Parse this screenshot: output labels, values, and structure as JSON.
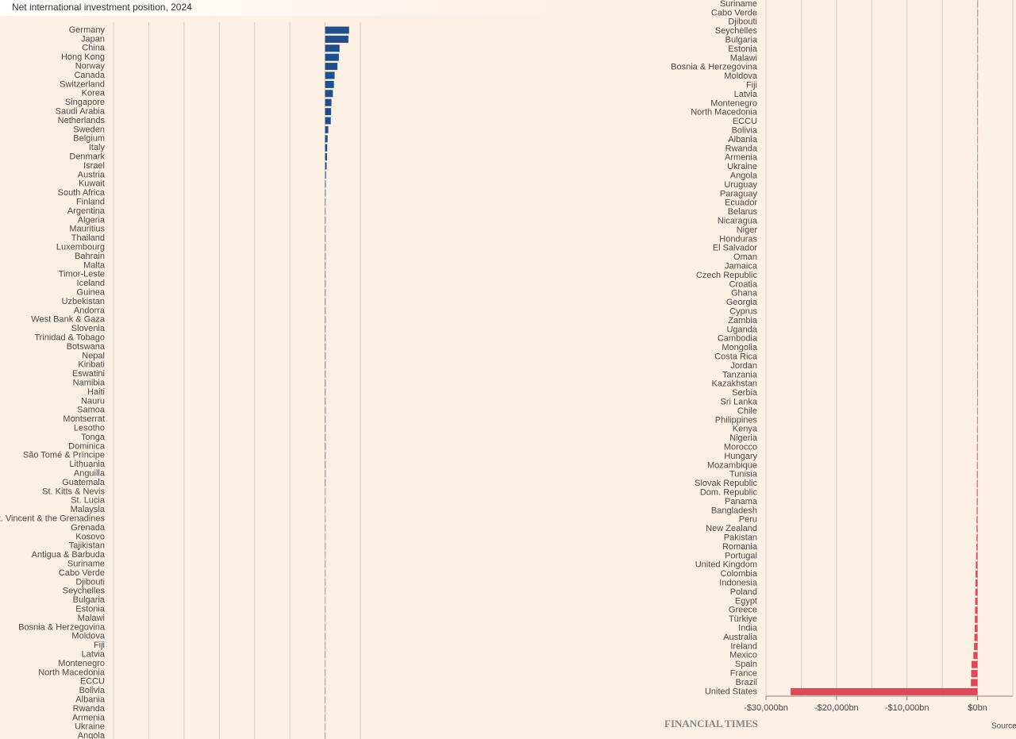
{
  "chart_data": [
    {
      "type": "bar",
      "orientation": "horizontal",
      "title": "Net international investment position, 2024",
      "categories": [
        "Germany",
        "Japan",
        "China",
        "Hong Kong",
        "Norway",
        "Canada",
        "Switzerland",
        "Korea",
        "Singapore",
        "Saudi Arabia",
        "Netherlands",
        "Sweden",
        "Belgium",
        "Italy",
        "Denmark",
        "Israel",
        "Austria",
        "Kuwait",
        "South Africa",
        "Finland",
        "Argentina",
        "Algeria",
        "Mauritius",
        "Thailand",
        "Luxembourg",
        "Bahrain",
        "Malta",
        "Timor-Leste",
        "Iceland",
        "Guinea",
        "Uzbekistan",
        "Andorra",
        "West Bank & Gaza",
        "Slovenia",
        "Trinidad & Tobago",
        "Botswana",
        "Nepal",
        "Kiribati",
        "Eswatini",
        "Namibia",
        "Haiti",
        "Nauru",
        "Samoa",
        "Montserrat",
        "Lesotho",
        "Tonga",
        "Dominica",
        "São Tomé & Príncipe",
        "Lithuania",
        "Anguilla",
        "Guatemala",
        "St. Kitts & Nevis",
        "St. Lucia",
        "Malaysia",
        "St. Vincent & the Grenadines",
        "Grenada",
        "Kosovo",
        "Tajikistan",
        "Antigua & Barbuda",
        "Suriname",
        "Cabo Verde",
        "Djibouti",
        "Seychelles",
        "Bulgaria",
        "Estonia",
        "Malawi",
        "Bosnia & Herzegovina",
        "Moldova",
        "Fiji",
        "Latvia",
        "Montenegro",
        "North Macedonia",
        "ECCU",
        "Bolivia",
        "Albania",
        "Rwanda",
        "Armenia",
        "Ukraine",
        "Angola"
      ],
      "values": [
        3400,
        3300,
        2050,
        1950,
        1750,
        1350,
        1250,
        1100,
        900,
        850,
        800,
        450,
        350,
        300,
        280,
        220,
        120,
        90,
        80,
        60,
        50,
        45,
        40,
        35,
        30,
        28,
        25,
        22,
        20,
        18,
        16,
        14,
        12,
        10,
        9,
        8,
        7,
        6,
        5,
        4.5,
        4,
        3.5,
        3,
        2.5,
        2,
        1.5,
        1,
        0.5,
        0.3,
        0.2,
        0.1,
        -0.2,
        -0.5,
        -1,
        -1,
        -1.2,
        -2,
        -2.5,
        -3,
        -4,
        -4,
        -5,
        -5,
        -6,
        -7,
        -7,
        -8,
        -8,
        -9,
        -10,
        -10,
        -11,
        -12,
        -12,
        -13,
        -13,
        -14,
        -15,
        -16
      ],
      "positive_color": "#1f4e8c",
      "negative_color": "#e0475a",
      "xlim": [
        -30000,
        5000
      ],
      "gridlines": [
        -30000,
        -25000,
        -20000,
        -15000,
        -10000,
        -5000,
        0,
        5000
      ]
    },
    {
      "type": "bar",
      "orientation": "horizontal",
      "categories": [
        "Suriname",
        "Cabo Verde",
        "Djibouti",
        "Seychelles",
        "Bulgaria",
        "Estonia",
        "Malawi",
        "Bosnia & Herzegovina",
        "Moldova",
        "Fiji",
        "Latvia",
        "Montenegro",
        "North Macedonia",
        "ECCU",
        "Bolivia",
        "Albania",
        "Rwanda",
        "Armenia",
        "Ukraine",
        "Angola",
        "Uruguay",
        "Paraguay",
        "Ecuador",
        "Belarus",
        "Nicaragua",
        "Niger",
        "Honduras",
        "El Salvador",
        "Oman",
        "Jamaica",
        "Czech Republic",
        "Croatia",
        "Ghana",
        "Georgia",
        "Cyprus",
        "Zambia",
        "Uganda",
        "Cambodia",
        "Mongolia",
        "Costa Rica",
        "Jordan",
        "Tanzania",
        "Kazakhstan",
        "Serbia",
        "Sri Lanka",
        "Chile",
        "Philippines",
        "Kenya",
        "Nigeria",
        "Morocco",
        "Hungary",
        "Mozambique",
        "Tunisia",
        "Slovak Republic",
        "Dom. Republic",
        "Panama",
        "Bangladesh",
        "Peru",
        "New Zealand",
        "Pakistan",
        "Romania",
        "Portugal",
        "United Kingdom",
        "Colombia",
        "Indonesia",
        "Poland",
        "Egypt",
        "Greece",
        "Türkiye",
        "India",
        "Australia",
        "Ireland",
        "Mexico",
        "Spain",
        "France",
        "Brazil",
        "United States"
      ],
      "values": [
        -4,
        -4,
        -5,
        -5,
        -6,
        -7,
        -7,
        -8,
        -8,
        -9,
        -10,
        -10,
        -11,
        -12,
        -12,
        -13,
        -13,
        -14,
        -15,
        -16,
        -17,
        -18,
        -20,
        -22,
        -24,
        -25,
        -26,
        -28,
        -30,
        -31,
        -33,
        -35,
        -37,
        -39,
        -41,
        -43,
        -45,
        -47,
        -49,
        -52,
        -55,
        -58,
        -61,
        -64,
        -67,
        -70,
        -74,
        -78,
        -82,
        -86,
        -90,
        -95,
        -100,
        -105,
        -110,
        -115,
        -120,
        -125,
        -140,
        -150,
        -160,
        -200,
        -250,
        -280,
        -300,
        -320,
        -340,
        -360,
        -380,
        -400,
        -450,
        -500,
        -600,
        -850,
        -900,
        -950,
        -26500
      ],
      "positive_color": "#1f4e8c",
      "negative_color": "#e0475a",
      "xlim": [
        -30000,
        5000
      ],
      "gridlines": [
        -30000,
        -25000,
        -20000,
        -15000,
        -10000,
        -5000,
        0,
        5000
      ],
      "xticks": [
        {
          "value": -30000,
          "label": "-$30,000bn"
        },
        {
          "value": -20000,
          "label": "-$20,000bn"
        },
        {
          "value": -10000,
          "label": "-$10,000bn"
        },
        {
          "value": 0,
          "label": "$0bn"
        }
      ],
      "credit": "FINANCIAL TIMES",
      "source": "Source"
    }
  ]
}
